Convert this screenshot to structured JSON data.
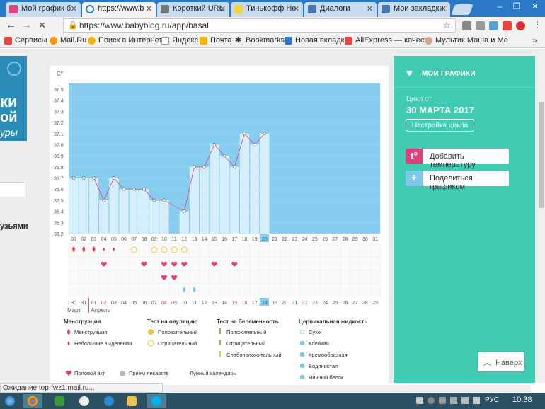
{
  "tabs": [
    {
      "title": "Мой график б",
      "color": "#d9457f"
    },
    {
      "title": "https://www.b",
      "color": "#2b78c6"
    },
    {
      "title": "Короткий URL",
      "color": "#555555"
    },
    {
      "title": "Тинькофф Не",
      "color": "#f5d43b"
    },
    {
      "title": "Диалоги",
      "color": "#4a76a8"
    },
    {
      "title": "Мои закладки",
      "color": "#4a76a8"
    }
  ],
  "toolbar": {
    "url": "https://www.babyblog.ru/app/basal"
  },
  "bookmarks": [
    {
      "label": "Сервисы",
      "color": "#e8453c"
    },
    {
      "label": "Mail.Ru",
      "color": "#f59b00"
    },
    {
      "label": "Поиск в Интернете",
      "color": "#f5b400"
    },
    {
      "label": "Яндекс",
      "color": "#dddddd"
    },
    {
      "label": "Почта",
      "color": "#f5b400"
    },
    {
      "label": "Bookmarks",
      "color": "#333333"
    },
    {
      "label": "Новая вкладка",
      "color": "#2b78c6"
    },
    {
      "label": "AliExpress — качеств",
      "color": "#e8453c"
    },
    {
      "label": "Мультик Маша и Ме",
      "color": "#d9a08a"
    }
  ],
  "left": {
    "line1": "ки",
    "line2": "ой",
    "line3": "уры",
    "friends": "узьями"
  },
  "sidebar": {
    "title": "МОИ ГРАФИКИ",
    "cycle_label": "Цикл от",
    "cycle_date": "30 МАРТА 2017",
    "settings": "Настройка цикла",
    "add_temp": "Добавить температуру",
    "share": "Поделиться графиком",
    "add_icon_text": "t°",
    "share_icon_text": "+"
  },
  "backtop": "Наверх",
  "chart_data": {
    "type": "line",
    "ylabel": "C°",
    "yticks": [
      "37.5",
      "37.4",
      "37.3",
      "37.2",
      "37.1",
      "37.0",
      "36.9",
      "36.8",
      "36.7",
      "36.6",
      "36.5",
      "36.4",
      "36.3",
      "36.2"
    ],
    "ylim": [
      36.2,
      37.5
    ],
    "days": [
      "01",
      "02",
      "03",
      "04",
      "05",
      "06",
      "07",
      "08",
      "09",
      "10",
      "11",
      "12",
      "13",
      "14",
      "15",
      "16",
      "17",
      "18",
      "19",
      "20",
      "21",
      "22",
      "23",
      "24",
      "25",
      "26",
      "27",
      "28",
      "29",
      "30",
      "31"
    ],
    "temps": [
      36.7,
      36.7,
      36.7,
      36.5,
      36.7,
      36.6,
      36.6,
      36.6,
      36.5,
      36.5,
      null,
      36.4,
      36.8,
      36.8,
      37.0,
      36.9,
      36.8,
      37.1,
      37.0,
      37.1
    ],
    "highlight_day": "20",
    "dates": [
      "30",
      "31",
      "01",
      "02",
      "03",
      "04",
      "05",
      "06",
      "07",
      "08",
      "09",
      "10",
      "11",
      "12",
      "13",
      "14",
      "15",
      "16",
      "17",
      "18",
      "19",
      "20",
      "21",
      "22",
      "23",
      "24",
      "25",
      "26",
      "27",
      "28",
      "29"
    ],
    "weekend_dates": [
      2,
      3,
      9,
      10,
      16,
      17,
      23,
      24,
      30
    ],
    "highlight_date": "18",
    "months": [
      "Март",
      "Апрель"
    ],
    "menstruation": [
      1,
      2,
      3
    ],
    "light_bleeding": [
      4,
      5
    ],
    "ovulation_negative": [
      7,
      9,
      10,
      11,
      12
    ],
    "intercourse": [
      4,
      8,
      10,
      11,
      12,
      15,
      17
    ],
    "intercourse_row2": [
      10,
      11
    ],
    "fluid_watery": [
      12,
      13
    ],
    "moon": [
      14
    ]
  },
  "legend": {
    "menstruation": {
      "title": "Менструация",
      "items": [
        "Менструация",
        "Небольшие выделения"
      ]
    },
    "ovulation": {
      "title": "Тест на овуляцию",
      "items": [
        "Положительный",
        "Отрицательный"
      ]
    },
    "pregnancy": {
      "title": "Тест на беременность",
      "items": [
        "Положительный",
        "Отрицательный",
        "Слабоположительный"
      ]
    },
    "fluid": {
      "title": "Цервикальная жидкость",
      "items": [
        "Сухо",
        "Клейкая",
        "Кремообразная",
        "Водянистая",
        "Яичный белок"
      ]
    },
    "bottom": [
      "Половой акт",
      "Прием лекарств",
      "Лунный календарь"
    ]
  },
  "status": "Ожидание top-fwz1.mail.ru...",
  "taskbar": {
    "lang": "РУС",
    "time": "10:38"
  }
}
